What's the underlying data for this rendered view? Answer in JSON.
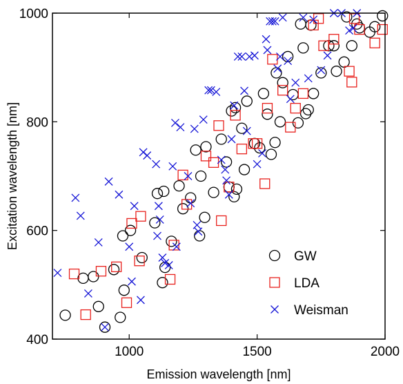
{
  "chart_data": {
    "type": "scatter",
    "xlabel": "Emission wavelength [nm]",
    "ylabel": "Excitation wavelength [nm]",
    "xlim": [
      700,
      2000
    ],
    "ylim": [
      400,
      1000
    ],
    "x_ticks": [
      1000,
      1500,
      2000
    ],
    "y_ticks": [
      400,
      600,
      800,
      1000
    ],
    "grid": false,
    "legend_position": "bottom-right",
    "series": [
      {
        "name": "GW",
        "marker": "circle",
        "color": "#000000",
        "points": [
          [
            750,
            444
          ],
          [
            820,
            512
          ],
          [
            860,
            515
          ],
          [
            880,
            460
          ],
          [
            905,
            422
          ],
          [
            940,
            528
          ],
          [
            965,
            440
          ],
          [
            975,
            590
          ],
          [
            980,
            490
          ],
          [
            1005,
            600
          ],
          [
            1050,
            550
          ],
          [
            1100,
            614
          ],
          [
            1110,
            668
          ],
          [
            1130,
            504
          ],
          [
            1135,
            672
          ],
          [
            1140,
            532
          ],
          [
            1165,
            580
          ],
          [
            1195,
            682
          ],
          [
            1210,
            640
          ],
          [
            1240,
            660
          ],
          [
            1260,
            748
          ],
          [
            1275,
            590
          ],
          [
            1280,
            700
          ],
          [
            1295,
            624
          ],
          [
            1300,
            754
          ],
          [
            1330,
            670
          ],
          [
            1360,
            768
          ],
          [
            1380,
            726
          ],
          [
            1390,
            680
          ],
          [
            1400,
            820
          ],
          [
            1410,
            662
          ],
          [
            1415,
            826
          ],
          [
            1420,
            676
          ],
          [
            1440,
            788
          ],
          [
            1450,
            712
          ],
          [
            1460,
            838
          ],
          [
            1490,
            760
          ],
          [
            1510,
            752
          ],
          [
            1525,
            852
          ],
          [
            1540,
            814
          ],
          [
            1555,
            740
          ],
          [
            1570,
            762
          ],
          [
            1575,
            890
          ],
          [
            1590,
            800
          ],
          [
            1600,
            872
          ],
          [
            1620,
            920
          ],
          [
            1640,
            850
          ],
          [
            1660,
            798
          ],
          [
            1670,
            980
          ],
          [
            1680,
            936
          ],
          [
            1690,
            815
          ],
          [
            1700,
            822
          ],
          [
            1710,
            978
          ],
          [
            1720,
            852
          ],
          [
            1750,
            890
          ],
          [
            1780,
            940
          ],
          [
            1800,
            940
          ],
          [
            1810,
            893
          ],
          [
            1840,
            910
          ],
          [
            1850,
            993
          ],
          [
            1870,
            940
          ],
          [
            1890,
            980
          ],
          [
            1900,
            973
          ],
          [
            1940,
            965
          ],
          [
            1960,
            975
          ],
          [
            1990,
            995
          ]
        ]
      },
      {
        "name": "LDA",
        "marker": "square",
        "color": "#e8201c",
        "points": [
          [
            785,
            520
          ],
          [
            830,
            445
          ],
          [
            890,
            525
          ],
          [
            950,
            533
          ],
          [
            990,
            467
          ],
          [
            1010,
            613
          ],
          [
            1040,
            544
          ],
          [
            1045,
            626
          ],
          [
            1160,
            510
          ],
          [
            1175,
            573
          ],
          [
            1210,
            702
          ],
          [
            1225,
            648
          ],
          [
            1300,
            737
          ],
          [
            1330,
            725
          ],
          [
            1350,
            793
          ],
          [
            1360,
            618
          ],
          [
            1390,
            680
          ],
          [
            1415,
            812
          ],
          [
            1440,
            750
          ],
          [
            1485,
            760
          ],
          [
            1500,
            760
          ],
          [
            1530,
            686
          ],
          [
            1540,
            825
          ],
          [
            1560,
            915
          ],
          [
            1600,
            858
          ],
          [
            1630,
            790
          ],
          [
            1650,
            825
          ],
          [
            1680,
            852
          ],
          [
            1720,
            978
          ],
          [
            1740,
            990
          ],
          [
            1760,
            940
          ],
          [
            1800,
            952
          ],
          [
            1860,
            893
          ],
          [
            1870,
            873
          ],
          [
            1880,
            990
          ],
          [
            1900,
            970
          ],
          [
            1960,
            945
          ],
          [
            1990,
            970
          ]
        ]
      },
      {
        "name": "Weisman",
        "marker": "x",
        "color": "#1515d6",
        "points": [
          [
            720,
            522
          ],
          [
            790,
            660
          ],
          [
            810,
            627
          ],
          [
            840,
            484
          ],
          [
            880,
            578
          ],
          [
            905,
            422
          ],
          [
            920,
            690
          ],
          [
            960,
            666
          ],
          [
            1000,
            570
          ],
          [
            1010,
            506
          ],
          [
            1020,
            645
          ],
          [
            1045,
            472
          ],
          [
            1055,
            744
          ],
          [
            1070,
            738
          ],
          [
            1105,
            722
          ],
          [
            1110,
            590
          ],
          [
            1115,
            645
          ],
          [
            1120,
            620
          ],
          [
            1130,
            550
          ],
          [
            1140,
            540
          ],
          [
            1155,
            536
          ],
          [
            1170,
            718
          ],
          [
            1180,
            798
          ],
          [
            1185,
            570
          ],
          [
            1200,
            790
          ],
          [
            1230,
            700
          ],
          [
            1240,
            650
          ],
          [
            1255,
            787
          ],
          [
            1265,
            610
          ],
          [
            1270,
            598
          ],
          [
            1290,
            804
          ],
          [
            1310,
            858
          ],
          [
            1320,
            858
          ],
          [
            1340,
            855
          ],
          [
            1360,
            730
          ],
          [
            1375,
            712
          ],
          [
            1380,
            692
          ],
          [
            1390,
            666
          ],
          [
            1400,
            768
          ],
          [
            1410,
            830
          ],
          [
            1425,
            920
          ],
          [
            1440,
            920
          ],
          [
            1450,
            857
          ],
          [
            1460,
            783
          ],
          [
            1470,
            920
          ],
          [
            1490,
            922
          ],
          [
            1500,
            722
          ],
          [
            1520,
            742
          ],
          [
            1535,
            952
          ],
          [
            1540,
            932
          ],
          [
            1550,
            985
          ],
          [
            1560,
            985
          ],
          [
            1570,
            985
          ],
          [
            1580,
            898
          ],
          [
            1590,
            920
          ],
          [
            1600,
            992
          ],
          [
            1620,
            912
          ],
          [
            1630,
            842
          ],
          [
            1650,
            872
          ],
          [
            1680,
            992
          ],
          [
            1700,
            880
          ],
          [
            1720,
            988
          ],
          [
            1750,
            895
          ],
          [
            1775,
            922
          ],
          [
            1800,
            1000
          ],
          [
            1830,
            1000
          ],
          [
            1860,
            968
          ],
          [
            1875,
            972
          ],
          [
            1890,
            1000
          ]
        ]
      }
    ]
  }
}
